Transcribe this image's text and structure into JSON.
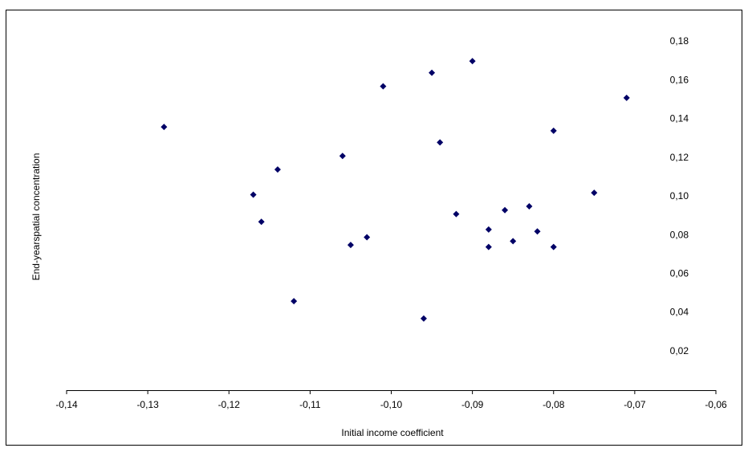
{
  "chart_data": {
    "type": "scatter",
    "x_label": "Initial income coefficient",
    "y_label": "End-yearspatial concentration",
    "color": "#000066",
    "x": [
      -0.128,
      -0.117,
      -0.116,
      -0.114,
      -0.112,
      -0.106,
      -0.105,
      -0.103,
      -0.101,
      -0.096,
      -0.095,
      -0.094,
      -0.092,
      -0.09,
      -0.088,
      -0.088,
      -0.086,
      -0.085,
      -0.083,
      -0.082,
      -0.08,
      -0.08,
      -0.075,
      -0.071
    ],
    "values": [
      0.136,
      0.101,
      0.087,
      0.114,
      0.046,
      0.121,
      0.075,
      0.079,
      0.157,
      0.037,
      0.164,
      0.128,
      0.091,
      0.17,
      0.083,
      0.074,
      0.093,
      0.077,
      0.095,
      0.082,
      0.134,
      0.074,
      0.102,
      0.151
    ],
    "xlim": [
      -0.14,
      -0.06
    ],
    "ylim": [
      0,
      0.18
    ],
    "xticks": [
      {
        "value": -0.14,
        "label": "-0,14"
      },
      {
        "value": -0.13,
        "label": "-0,13"
      },
      {
        "value": -0.12,
        "label": "-0,12"
      },
      {
        "value": -0.11,
        "label": "-0,11"
      },
      {
        "value": -0.1,
        "label": "-0,10"
      },
      {
        "value": -0.09,
        "label": "-0,09"
      },
      {
        "value": -0.08,
        "label": "-0,08"
      },
      {
        "value": -0.07,
        "label": "-0,07"
      },
      {
        "value": -0.06,
        "label": "-0,06"
      }
    ],
    "yticks": [
      {
        "value": 0.02,
        "label": "0,02"
      },
      {
        "value": 0.04,
        "label": "0,04"
      },
      {
        "value": 0.06,
        "label": "0,06"
      },
      {
        "value": 0.08,
        "label": "0,08"
      },
      {
        "value": 0.1,
        "label": "0,10"
      },
      {
        "value": 0.12,
        "label": "0,12"
      },
      {
        "value": 0.14,
        "label": "0,14"
      },
      {
        "value": 0.16,
        "label": "0,16"
      },
      {
        "value": 0.18,
        "label": "0,18"
      }
    ],
    "grid": false
  }
}
